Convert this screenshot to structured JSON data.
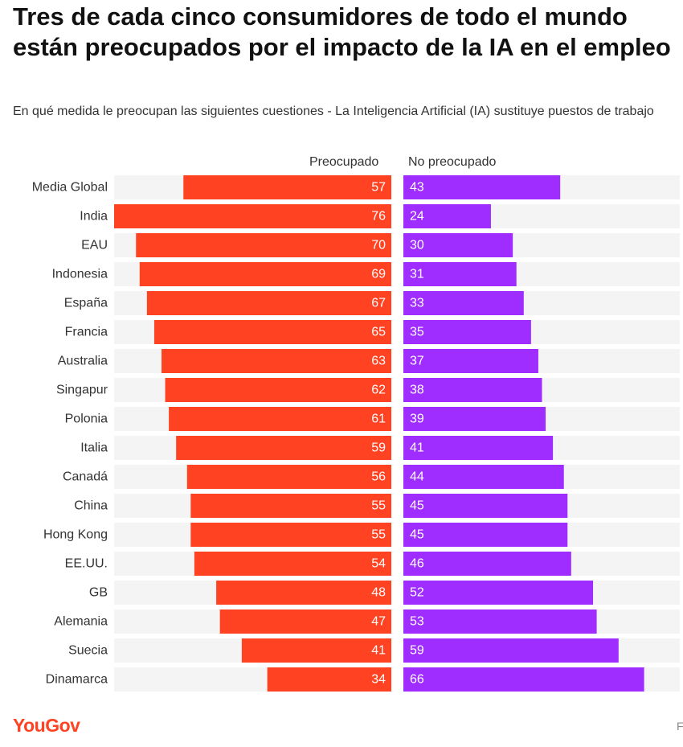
{
  "header": {
    "title": "Tres de cada cinco consumidores de todo el mundo están preocupados por el impacto de la IA en el empleo",
    "subtitle": "En qué medida le preocupan las siguientes cuestiones - La Inteligencia Artificial (IA) sustituye puestos de trabajo"
  },
  "legend": {
    "left": "Preocupado",
    "right": "No preocupado"
  },
  "colors": {
    "concerned": "#ff4222",
    "not_concerned": "#a02dff",
    "track": "#f4f4f4"
  },
  "chart_data": {
    "type": "bar",
    "orientation": "diverging-horizontal",
    "title": "Tres de cada cinco consumidores de todo el mundo están preocupados por el impacto de la IA en el empleo",
    "subtitle": "En qué medida le preocupan las siguientes cuestiones - La Inteligencia Artificial (IA) sustituye puestos de trabajo",
    "xlabel": "",
    "ylabel": "",
    "xlim": [
      0,
      76
    ],
    "categories": [
      "Media Global",
      "India",
      "EAU",
      "Indonesia",
      "España",
      "Francia",
      "Australia",
      "Singapur",
      "Polonia",
      "Italia",
      "Canadá",
      "China",
      "Hong Kong",
      "EE.UU.",
      "GB",
      "Alemania",
      "Suecia",
      "Dinamarca"
    ],
    "series": [
      {
        "name": "Preocupado",
        "values": [
          57,
          76,
          70,
          69,
          67,
          65,
          63,
          62,
          61,
          59,
          56,
          55,
          55,
          54,
          48,
          47,
          41,
          34
        ]
      },
      {
        "name": "No preocupado",
        "values": [
          43,
          24,
          30,
          31,
          33,
          35,
          37,
          38,
          39,
          41,
          44,
          45,
          45,
          46,
          52,
          53,
          59,
          66
        ]
      }
    ]
  },
  "footer": {
    "brand": "YouGov",
    "corner": "F"
  }
}
